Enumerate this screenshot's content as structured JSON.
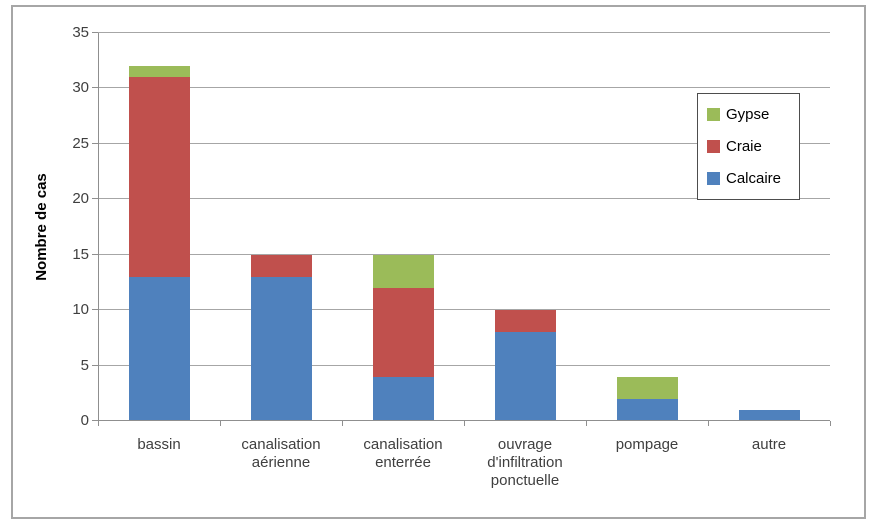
{
  "chart_data": {
    "type": "bar",
    "stacked": true,
    "title": "",
    "xlabel": "",
    "ylabel": "Nombre de cas",
    "ylim": [
      0,
      35
    ],
    "yticks": [
      0,
      5,
      10,
      15,
      20,
      25,
      30,
      35
    ],
    "grid": true,
    "legend_position": "inside-right",
    "categories": [
      "bassin",
      "canalisation aérienne",
      "canalisation enterrée",
      "ouvrage d'infiltration ponctuelle",
      "pompage",
      "autre"
    ],
    "series": [
      {
        "name": "Calcaire",
        "color": "#4F81BD",
        "values": [
          13,
          13,
          4,
          8,
          2,
          1
        ]
      },
      {
        "name": "Craie",
        "color": "#C0504D",
        "values": [
          18,
          2,
          8,
          2,
          0,
          0
        ]
      },
      {
        "name": "Gypse",
        "color": "#9BBB59",
        "values": [
          1,
          0,
          3,
          0,
          2,
          0
        ]
      }
    ],
    "stacked_totals": [
      32,
      15,
      15,
      10,
      4,
      1
    ],
    "legend_entries": [
      "Gypse",
      "Craie",
      "Calcaire"
    ]
  },
  "colors": {
    "gridline": "#a6a6a6",
    "axis_line": "#8f8f8f",
    "tick": "#8f8f8f",
    "tick_label_text": "#3f3f3f",
    "category_label_text": "#3f3f3f",
    "axis_title_text": "#000000",
    "legend_border": "#4d4d4d",
    "frame_border": "#a6a6a6",
    "background": "#ffffff"
  }
}
